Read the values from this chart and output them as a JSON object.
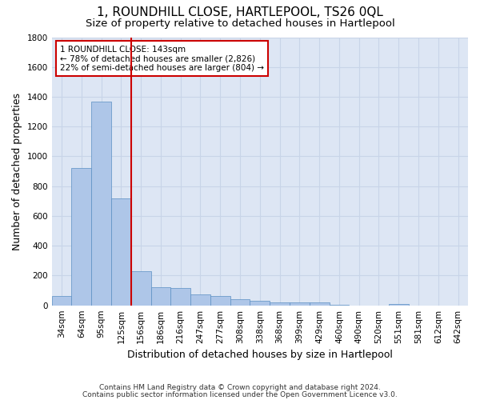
{
  "title": "1, ROUNDHILL CLOSE, HARTLEPOOL, TS26 0QL",
  "subtitle": "Size of property relative to detached houses in Hartlepool",
  "xlabel": "Distribution of detached houses by size in Hartlepool",
  "ylabel": "Number of detached properties",
  "footnote1": "Contains HM Land Registry data © Crown copyright and database right 2024.",
  "footnote2": "Contains public sector information licensed under the Open Government Licence v3.0.",
  "categories": [
    "34sqm",
    "64sqm",
    "95sqm",
    "125sqm",
    "156sqm",
    "186sqm",
    "216sqm",
    "247sqm",
    "277sqm",
    "308sqm",
    "338sqm",
    "368sqm",
    "399sqm",
    "429sqm",
    "460sqm",
    "490sqm",
    "520sqm",
    "551sqm",
    "581sqm",
    "612sqm",
    "642sqm"
  ],
  "values": [
    65,
    920,
    1370,
    720,
    230,
    120,
    115,
    75,
    65,
    42,
    30,
    20,
    22,
    18,
    5,
    0,
    0,
    7,
    0,
    0,
    0
  ],
  "bar_color": "#aec6e8",
  "bar_edge_color": "#5a8fc3",
  "grid_color": "#c8d4e8",
  "background_color": "#dde6f4",
  "vline_color": "#cc0000",
  "annotation_line1": "1 ROUNDHILL CLOSE: 143sqm",
  "annotation_line2": "← 78% of detached houses are smaller (2,826)",
  "annotation_line3": "22% of semi-detached houses are larger (804) →",
  "annotation_box_color": "#cc0000",
  "ylim": [
    0,
    1800
  ],
  "yticks": [
    0,
    200,
    400,
    600,
    800,
    1000,
    1200,
    1400,
    1600,
    1800
  ],
  "title_fontsize": 11,
  "subtitle_fontsize": 9.5,
  "axis_label_fontsize": 9,
  "tick_fontsize": 7.5,
  "annotation_fontsize": 7.5
}
